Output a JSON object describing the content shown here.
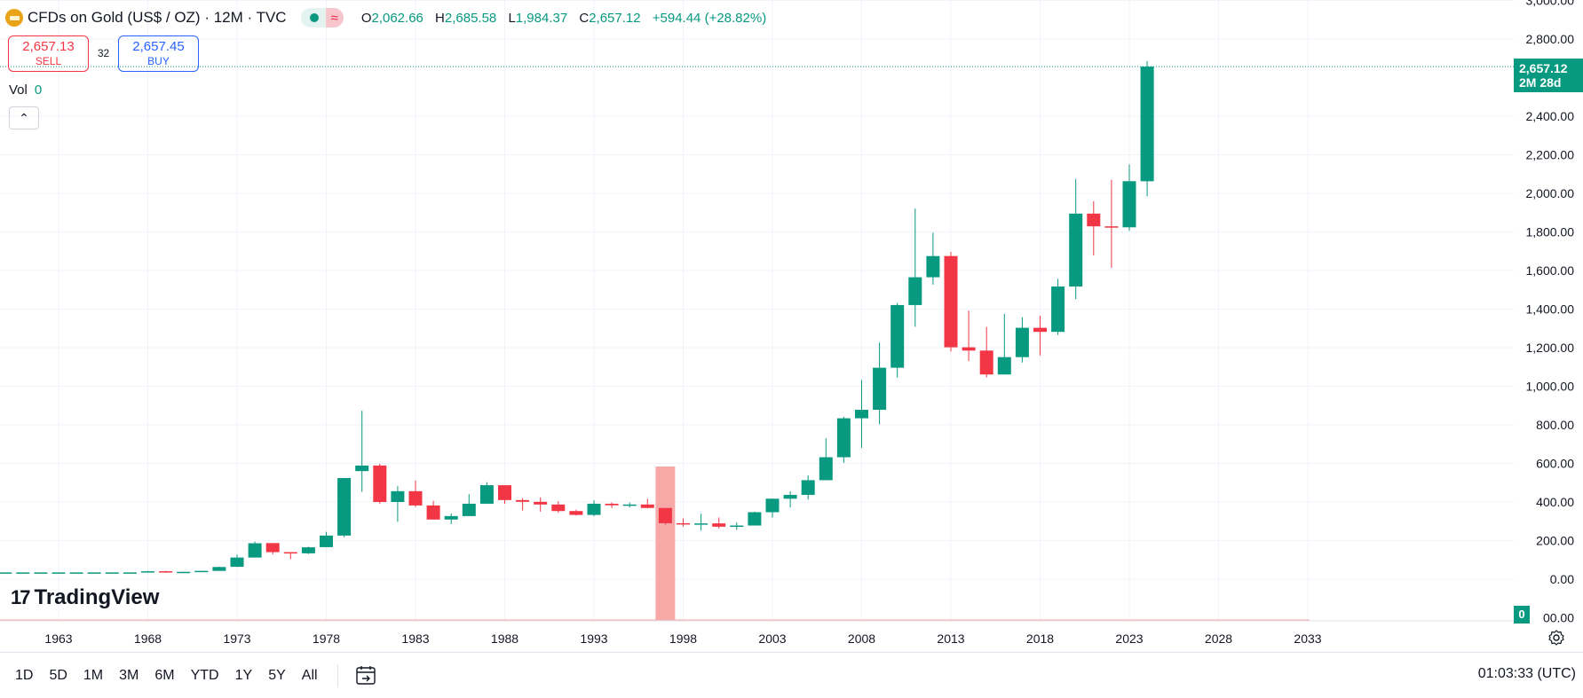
{
  "header": {
    "symbol_title": "CFDs on Gold (US$ / OZ) · 12M · TVC",
    "ohlc": {
      "o_label": "O",
      "o_value": "2,062.66",
      "h_label": "H",
      "h_value": "2,685.58",
      "l_label": "L",
      "l_value": "1,984.37",
      "c_label": "C",
      "c_value": "2,657.12",
      "change": "+594.44 (+28.82%)"
    },
    "status_pill_icon": "wave-icon",
    "status_pill_glyph": "≈"
  },
  "trade": {
    "sell_price": "2,657.13",
    "sell_label": "SELL",
    "spread": "32",
    "buy_price": "2,657.45",
    "buy_label": "BUY"
  },
  "volume": {
    "label": "Vol",
    "value": "0"
  },
  "collapse_glyph": "⌃",
  "logo": {
    "mark": "17",
    "text": "TradingView"
  },
  "last_price": {
    "price": "2,657.12",
    "countdown": "2M 28d"
  },
  "volume_scale_badge": "0",
  "ranges": [
    "1D",
    "5D",
    "1M",
    "3M",
    "6M",
    "YTD",
    "1Y",
    "5Y",
    "All"
  ],
  "clock": "01:03:33 (UTC)",
  "colors": {
    "up": "#089981",
    "down": "#f23645",
    "highlight": "#f7a9a8",
    "grid": "#f0f3fa"
  },
  "chart_data": {
    "type": "candlestick",
    "y_axis": {
      "ticks": [
        0,
        200,
        400,
        600,
        800,
        1000,
        1200,
        1400,
        1600,
        1800,
        2000,
        2200,
        2400,
        2800,
        3000
      ],
      "tick_labels": [
        "0.00",
        "200.00",
        "400.00",
        "600.00",
        "800.00",
        "1,000.00",
        "1,200.00",
        "1,400.00",
        "1,600.00",
        "1,800.00",
        "2,000.00",
        "2,200.00",
        "2,400.00",
        "2,800.00",
        "3,000.00"
      ],
      "bottom_label": "00.00",
      "range": [
        -200,
        3000
      ]
    },
    "x_axis": {
      "ticks": [
        1963,
        1968,
        1973,
        1978,
        1983,
        1988,
        1993,
        1998,
        2003,
        2008,
        2013,
        2018,
        2023,
        2028,
        2033
      ],
      "range": [
        1959,
        2035.5
      ]
    },
    "highlighted_year": 1997,
    "last_price": 2657.12,
    "grid": true,
    "candles": [
      [
        1959,
        35,
        35,
        35,
        35
      ],
      [
        1960,
        35,
        35,
        35,
        35
      ],
      [
        1961,
        35,
        35,
        35,
        35
      ],
      [
        1962,
        35,
        35,
        35,
        35
      ],
      [
        1963,
        35,
        35,
        35,
        35
      ],
      [
        1964,
        35,
        35,
        35,
        35
      ],
      [
        1965,
        35,
        35,
        35,
        35
      ],
      [
        1966,
        35,
        35,
        35,
        35
      ],
      [
        1967,
        35,
        35,
        35,
        35
      ],
      [
        1968,
        35,
        43,
        35,
        41
      ],
      [
        1969,
        41,
        43,
        35,
        35
      ],
      [
        1970,
        35,
        39,
        35,
        38
      ],
      [
        1971,
        38,
        44,
        37,
        43
      ],
      [
        1972,
        43,
        65,
        43,
        63
      ],
      [
        1973,
        64,
        127,
        63,
        112
      ],
      [
        1974,
        112,
        195,
        112,
        186
      ],
      [
        1975,
        187,
        187,
        128,
        140
      ],
      [
        1976,
        140,
        140,
        104,
        134
      ],
      [
        1977,
        134,
        168,
        130,
        165
      ],
      [
        1978,
        166,
        245,
        165,
        226
      ],
      [
        1979,
        226,
        524,
        217,
        524
      ],
      [
        1980,
        560,
        873,
        453,
        589
      ],
      [
        1981,
        589,
        598,
        391,
        400
      ],
      [
        1982,
        400,
        482,
        297,
        456
      ],
      [
        1983,
        456,
        511,
        374,
        382
      ],
      [
        1984,
        382,
        406,
        308,
        309
      ],
      [
        1985,
        309,
        340,
        285,
        327
      ],
      [
        1986,
        327,
        441,
        327,
        391
      ],
      [
        1987,
        391,
        502,
        391,
        487
      ],
      [
        1988,
        487,
        487,
        390,
        410
      ],
      [
        1989,
        410,
        420,
        356,
        401
      ],
      [
        1990,
        401,
        424,
        350,
        387
      ],
      [
        1991,
        387,
        404,
        344,
        353
      ],
      [
        1992,
        353,
        360,
        330,
        333
      ],
      [
        1993,
        333,
        409,
        326,
        391
      ],
      [
        1994,
        391,
        398,
        369,
        383
      ],
      [
        1995,
        383,
        397,
        372,
        387
      ],
      [
        1996,
        387,
        417,
        367,
        369
      ],
      [
        1997,
        369,
        369,
        283,
        290
      ],
      [
        1998,
        290,
        315,
        273,
        287
      ],
      [
        1999,
        287,
        339,
        252,
        289
      ],
      [
        2000,
        289,
        320,
        263,
        272
      ],
      [
        2001,
        272,
        294,
        255,
        278
      ],
      [
        2002,
        278,
        350,
        278,
        347
      ],
      [
        2003,
        347,
        418,
        319,
        417
      ],
      [
        2004,
        417,
        456,
        371,
        437
      ],
      [
        2005,
        437,
        538,
        412,
        513
      ],
      [
        2006,
        513,
        730,
        513,
        632
      ],
      [
        2007,
        632,
        842,
        603,
        834
      ],
      [
        2008,
        834,
        1032,
        681,
        878
      ],
      [
        2009,
        878,
        1226,
        803,
        1096
      ],
      [
        2010,
        1096,
        1432,
        1045,
        1421
      ],
      [
        2011,
        1421,
        1921,
        1308,
        1565
      ],
      [
        2012,
        1565,
        1796,
        1527,
        1675
      ],
      [
        2013,
        1675,
        1696,
        1180,
        1202
      ],
      [
        2014,
        1202,
        1392,
        1131,
        1185
      ],
      [
        2015,
        1185,
        1308,
        1046,
        1061
      ],
      [
        2016,
        1061,
        1375,
        1061,
        1151
      ],
      [
        2017,
        1151,
        1358,
        1123,
        1303
      ],
      [
        2018,
        1303,
        1366,
        1160,
        1282
      ],
      [
        2019,
        1282,
        1557,
        1266,
        1517
      ],
      [
        2020,
        1517,
        2075,
        1451,
        1895
      ],
      [
        2021,
        1895,
        1959,
        1678,
        1829
      ],
      [
        2022,
        1829,
        2070,
        1614,
        1824
      ],
      [
        2023,
        1824,
        2150,
        1805,
        2063
      ],
      [
        2024,
        2062.66,
        2685.58,
        1984.37,
        2657.12
      ]
    ]
  }
}
